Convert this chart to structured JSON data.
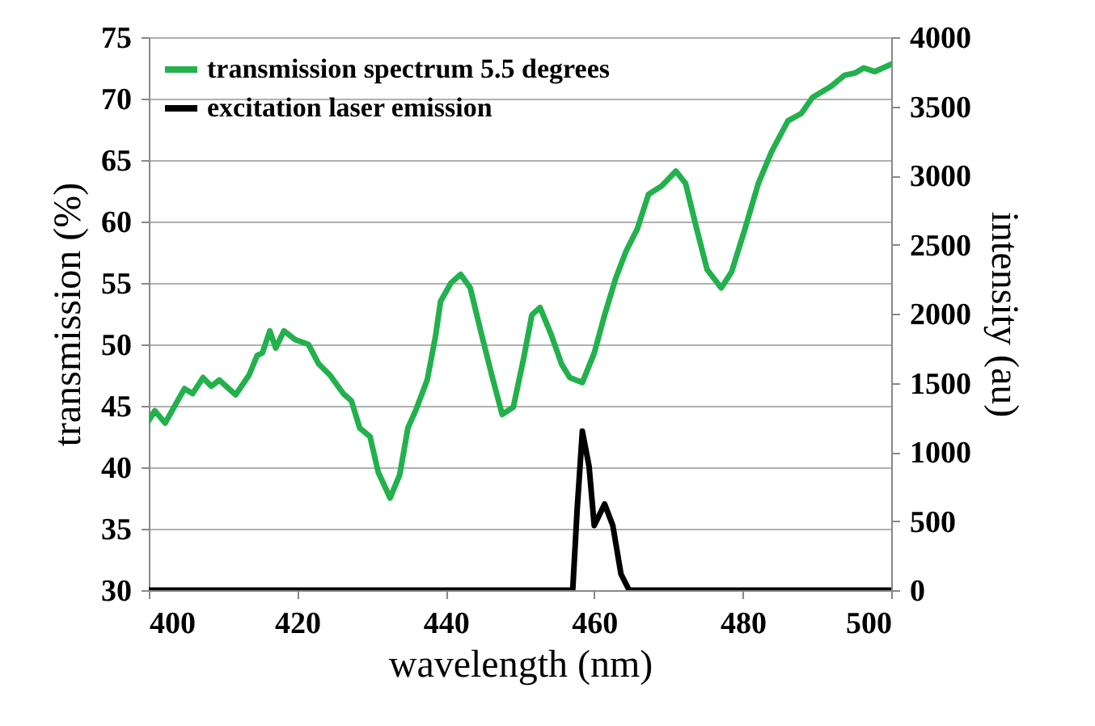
{
  "chart_data": {
    "type": "line",
    "xlabel": "wavelength (nm)",
    "ylabel": "transmission (%)",
    "y2label": "intensity (au)",
    "xlim": [
      400,
      500
    ],
    "xticks": [
      400,
      420,
      440,
      460,
      480,
      500
    ],
    "ylim": [
      30,
      75
    ],
    "yticks": [
      30,
      35,
      40,
      45,
      50,
      55,
      60,
      65,
      70,
      75
    ],
    "y2lim": [
      0,
      4000
    ],
    "y2ticks": [
      0,
      500,
      1000,
      1500,
      2000,
      2500,
      3000,
      3500,
      4000
    ],
    "grid": "y",
    "legend": "top left",
    "marker": "none",
    "line_style": "solid",
    "series": [
      {
        "name": "transmission spectrum 5.5 degrees",
        "color": "#22b14c",
        "x": [
          400,
          400.8,
          402.2,
          404.8,
          405.9,
          407.3,
          408.4,
          409.5,
          411.7,
          413.5,
          414.6,
          415.3,
          416.3,
          417.1,
          418.2,
          419.7,
          421.5,
          422.9,
          424.4,
          426.2,
          427.3,
          428.4,
          429.8,
          430.9,
          432.5,
          433.8,
          434.9,
          436,
          437.5,
          438.6,
          439.3,
          440.7,
          442,
          443.3,
          444.7,
          446.2,
          447.6,
          449.1,
          450.5,
          451.6,
          452.7,
          454.2,
          455.6,
          456.7,
          458.4,
          460,
          461.4,
          462.9,
          464.3,
          465.8,
          467.3,
          469.1,
          471,
          472.3,
          473.8,
          475.2,
          477.1,
          478.5,
          480.3,
          482.1,
          483.9,
          486.1,
          487.9,
          489.4,
          491.9,
          493.7,
          495.2,
          496.3,
          497.8,
          500
        ],
        "values": [
          43.8,
          44.6,
          43.6,
          46.4,
          46,
          47.3,
          46.6,
          47.1,
          45.9,
          47.5,
          49.1,
          49.3,
          51.1,
          49.7,
          51.1,
          50.4,
          50,
          48.4,
          47.5,
          46,
          45.4,
          43.2,
          42.5,
          39.6,
          37.5,
          39.4,
          43.2,
          44.7,
          47.1,
          50.6,
          53.5,
          55,
          55.7,
          54.6,
          51.1,
          47.5,
          44.3,
          44.9,
          48.9,
          52.4,
          53,
          50.8,
          48.4,
          47.3,
          46.9,
          49.3,
          52.4,
          55.4,
          57.6,
          59.4,
          62.2,
          62.9,
          64.1,
          63.1,
          59.4,
          56.1,
          54.6,
          55.9,
          59.4,
          63.1,
          65.7,
          68.2,
          68.8,
          70.1,
          71,
          71.9,
          72.1,
          72.5,
          72.2,
          72.8
        ]
      },
      {
        "name": "excitation laser emission",
        "color": "#000000",
        "axis": "y2",
        "x": [
          400,
          457.1,
          457.7,
          458.4,
          459.3,
          460,
          461.4,
          462.5,
          463.6,
          464.7,
          500
        ],
        "values": [
          0,
          0,
          585,
          1150,
          897,
          468,
          623,
          468,
          117,
          0,
          0
        ]
      }
    ]
  }
}
